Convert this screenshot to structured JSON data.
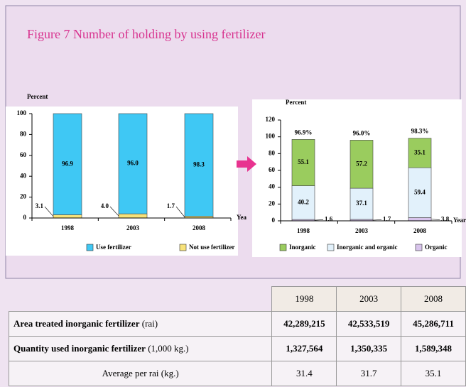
{
  "title": "Figure  7   Number of holding  by using fertilizer",
  "chart_data": [
    {
      "type": "bar",
      "stacked": true,
      "ylabel": "Percent",
      "xlabel": "Yea",
      "categories": [
        "1998",
        "2003",
        "2008"
      ],
      "series": [
        {
          "name": "Use fertilizer",
          "color": "#3fc8f4",
          "values": [
            96.9,
            96.0,
            98.3
          ],
          "value_labels": [
            "96.9",
            "96.0",
            "98.3"
          ]
        },
        {
          "name": "Not use fertilizer",
          "color": "#f7e27a",
          "values": [
            3.1,
            4.0,
            1.7
          ],
          "value_labels": [
            "3.1",
            "4.0",
            "1.7"
          ]
        }
      ],
      "ylim": [
        0,
        100
      ],
      "yticks": [
        0,
        20,
        40,
        60,
        80,
        100
      ]
    },
    {
      "type": "bar",
      "stacked": true,
      "ylabel": "Percent",
      "xlabel": "Year",
      "categories": [
        "1998",
        "2003",
        "2008"
      ],
      "series": [
        {
          "name": "Inorganic",
          "color": "#9acc5e",
          "values": [
            55.1,
            57.2,
            35.1
          ]
        },
        {
          "name": "Inorganic and organic",
          "color": "#e2f1fb",
          "values": [
            40.2,
            37.1,
            59.4
          ]
        },
        {
          "name": "Organic",
          "color": "#d8c4ec",
          "values": [
            1.6,
            1.7,
            3.8
          ]
        }
      ],
      "totals": [
        96.9,
        96.0,
        98.3
      ],
      "total_labels": [
        "96.9%",
        "96.0%",
        "98.3%"
      ],
      "ylim": [
        0,
        120
      ],
      "yticks": [
        0,
        20,
        40,
        60,
        80,
        100,
        120
      ]
    }
  ],
  "table": {
    "columns": [
      "1998",
      "2003",
      "2008"
    ],
    "rows": [
      {
        "label": "Area treated inorganic fertilizer",
        "unit": "(rai)",
        "values": [
          "42,289,215",
          "42,533,519",
          "45,286,711"
        ]
      },
      {
        "label": "Quantity used inorganic fertilizer",
        "unit": "(1,000 kg.)",
        "values": [
          "1,327,564",
          "1,350,335",
          "1,589,348"
        ]
      },
      {
        "label": "Average per rai (kg.)",
        "values": [
          "31.4",
          "31.7",
          "35.1"
        ]
      }
    ]
  }
}
